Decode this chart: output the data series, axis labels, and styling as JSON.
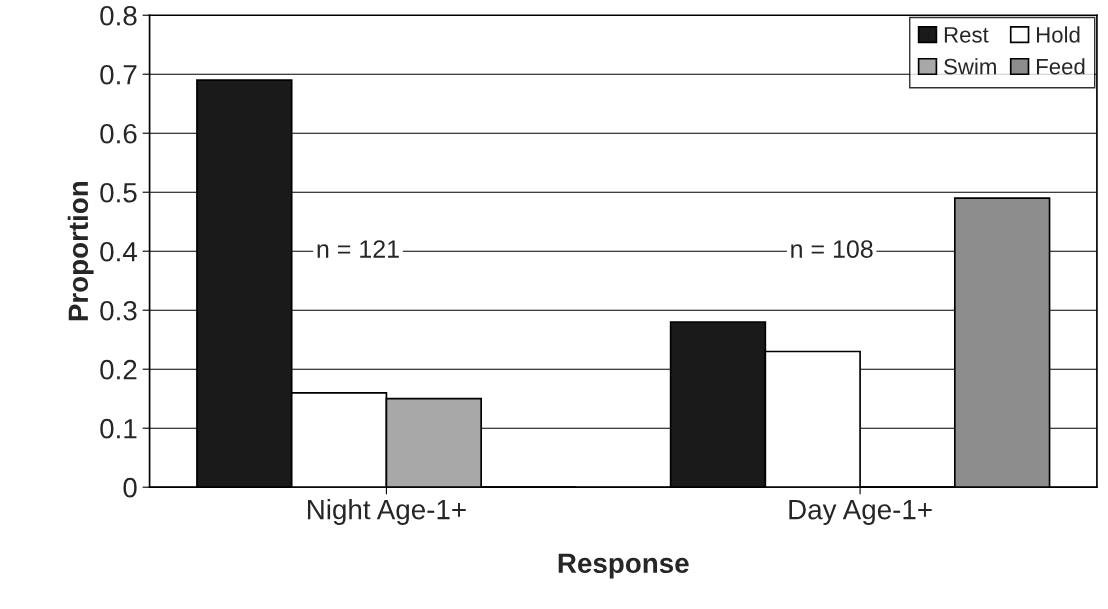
{
  "chart_data": {
    "type": "bar",
    "xlabel": "Response",
    "ylabel": "Proportion",
    "categories": [
      "Night Age-1+",
      "Day Age-1+"
    ],
    "series": [
      {
        "name": "Rest",
        "color": "#1a1a1a",
        "values": [
          0.69,
          0.28
        ]
      },
      {
        "name": "Hold",
        "color": "#ffffff",
        "values": [
          0.16,
          0.23
        ]
      },
      {
        "name": "Swim",
        "color": "#a8a8a8",
        "values": [
          0.15,
          0
        ]
      },
      {
        "name": "Feed",
        "color": "#8c8c8c",
        "values": [
          0,
          0.49
        ]
      }
    ],
    "ylim": [
      0,
      0.8
    ],
    "yticks": [
      0,
      0.1,
      0.2,
      0.3,
      0.4,
      0.5,
      0.6,
      0.7,
      0.8
    ],
    "grid": "y",
    "legend": "top right",
    "annotations": [
      "n = 121",
      "n = 108"
    ]
  }
}
